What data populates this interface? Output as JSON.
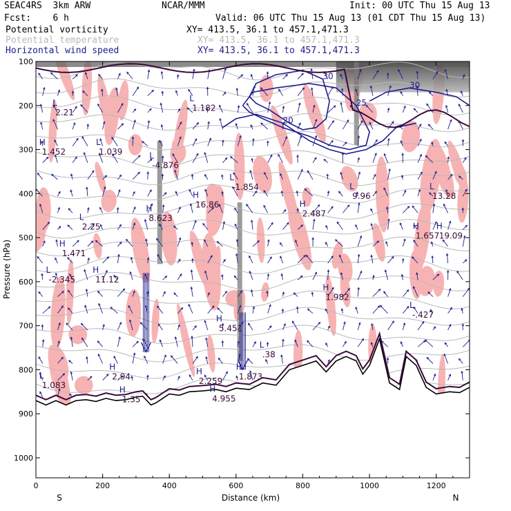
{
  "header": {
    "model": "SEAC4RS  3km ARW",
    "org": "NCAR/MMM",
    "init": "Init: 00 UTC Thu 15 Aug 13",
    "fcst": "Fcst:    6 h",
    "valid": "Valid: 06 UTC Thu 15 Aug 13 (01 CDT Thu 15 Aug 13)"
  },
  "legend": [
    {
      "name": "Potential vorticity",
      "xy": "XY= 413.5, 36.1 to 457.1,471.3",
      "color": "#000000"
    },
    {
      "name": "Potential temperature",
      "xy": "XY= 413.5, 36.1 to 457.1,471.3",
      "color": "#b8b8b8"
    },
    {
      "name": "Horizontal wind speed",
      "xy": "XY= 413.5, 36.1 to 457.1,471.3",
      "color": "#1c1c8c"
    }
  ],
  "chart_data": {
    "type": "cross-section",
    "xlabel": "Distance (km)",
    "ylabel": "Pressure (hPa)",
    "xlim": [
      0,
      1300
    ],
    "ylim": [
      1050,
      100
    ],
    "x_ticks": [
      0,
      200,
      400,
      600,
      800,
      1000,
      1200
    ],
    "y_ticks": [
      100,
      200,
      300,
      400,
      500,
      600,
      700,
      800,
      900,
      1000
    ],
    "x_end_labels": {
      "left": "S",
      "right": "N"
    },
    "terrain_surface": [
      [
        0,
        870
      ],
      [
        30,
        880
      ],
      [
        60,
        870
      ],
      [
        90,
        880
      ],
      [
        120,
        870
      ],
      [
        150,
        868
      ],
      [
        180,
        872
      ],
      [
        210,
        865
      ],
      [
        240,
        870
      ],
      [
        270,
        868
      ],
      [
        300,
        862
      ],
      [
        320,
        860
      ],
      [
        345,
        880
      ],
      [
        360,
        875
      ],
      [
        380,
        865
      ],
      [
        400,
        855
      ],
      [
        430,
        858
      ],
      [
        460,
        850
      ],
      [
        500,
        848
      ],
      [
        540,
        845
      ],
      [
        570,
        850
      ],
      [
        600,
        842
      ],
      [
        640,
        845
      ],
      [
        680,
        830
      ],
      [
        720,
        835
      ],
      [
        760,
        800
      ],
      [
        800,
        790
      ],
      [
        840,
        780
      ],
      [
        870,
        805
      ],
      [
        900,
        780
      ],
      [
        930,
        770
      ],
      [
        960,
        780
      ],
      [
        980,
        810
      ],
      [
        1000,
        790
      ],
      [
        1030,
        730
      ],
      [
        1060,
        830
      ],
      [
        1090,
        845
      ],
      [
        1110,
        770
      ],
      [
        1140,
        790
      ],
      [
        1170,
        840
      ],
      [
        1200,
        855
      ],
      [
        1240,
        850
      ],
      [
        1270,
        852
      ],
      [
        1300,
        840
      ]
    ],
    "wind_speed_contours": [
      {
        "label": "30",
        "points": [
          [
            640,
            180
          ],
          [
            660,
            150
          ],
          [
            720,
            130
          ],
          [
            800,
            120
          ],
          [
            860,
            140
          ],
          [
            880,
            190
          ],
          [
            870,
            230
          ],
          [
            840,
            250
          ],
          [
            800,
            255
          ],
          [
            760,
            240
          ],
          [
            700,
            210
          ],
          [
            660,
            195
          ],
          [
            640,
            180
          ]
        ]
      },
      {
        "label": "25",
        "points": [
          [
            620,
            200
          ],
          [
            650,
            170
          ],
          [
            720,
            160
          ],
          [
            820,
            150
          ],
          [
            900,
            160
          ],
          [
            960,
            200
          ],
          [
            1000,
            260
          ],
          [
            990,
            290
          ],
          [
            940,
            300
          ],
          [
            880,
            290
          ],
          [
            820,
            270
          ],
          [
            740,
            250
          ],
          [
            680,
            230
          ],
          [
            640,
            215
          ],
          [
            620,
            200
          ]
        ]
      },
      {
        "label": "20",
        "points": [
          [
            560,
            250
          ],
          [
            600,
            230
          ],
          [
            660,
            220
          ],
          [
            740,
            240
          ],
          [
            820,
            280
          ],
          [
            880,
            300
          ],
          [
            930,
            310
          ],
          [
            990,
            300
          ],
          [
            1040,
            280
          ],
          [
            1080,
            250
          ],
          [
            1140,
            240
          ]
        ]
      },
      {
        "label": "30",
        "points": [
          [
            1000,
            190
          ],
          [
            1050,
            170
          ],
          [
            1120,
            160
          ],
          [
            1200,
            170
          ],
          [
            1260,
            180
          ],
          [
            1300,
            200
          ]
        ]
      }
    ],
    "extrema_labels": [
      {
        "text": "H",
        "value": "1.452",
        "x": 10,
        "p": 290
      },
      {
        "text": "L",
        "value": "2.21",
        "x": 50,
        "p": 200
      },
      {
        "text": "L",
        "value": "1.039",
        "x": 180,
        "p": 290
      },
      {
        "text": "L",
        "value": "1.182",
        "x": 460,
        "p": 190
      },
      {
        "text": "L",
        "value": "-4.876",
        "x": 340,
        "p": 320
      },
      {
        "text": "H",
        "value": "8.623",
        "x": 330,
        "p": 440
      },
      {
        "text": "H",
        "value": "16.86",
        "x": 470,
        "p": 410
      },
      {
        "text": "L",
        "value": "-1.854",
        "x": 580,
        "p": 370
      },
      {
        "text": "L",
        "value": "2.25",
        "x": 130,
        "p": 460
      },
      {
        "text": "H",
        "value": "1.471",
        "x": 70,
        "p": 520
      },
      {
        "text": "L",
        "value": "-2.345",
        "x": 30,
        "p": 580
      },
      {
        "text": "H",
        "value": "11.12",
        "x": 170,
        "p": 580
      },
      {
        "text": "H",
        "value": "2.487",
        "x": 790,
        "p": 430
      },
      {
        "text": "L",
        "value": "9.96",
        "x": 940,
        "p": 390
      },
      {
        "text": "L",
        "value": "13.28",
        "x": 1180,
        "p": 390
      },
      {
        "text": "H",
        "value": "1.657",
        "x": 1130,
        "p": 480
      },
      {
        "text": "H",
        "value": "19.09",
        "x": 1200,
        "p": 480
      },
      {
        "text": "H",
        "value": "1.982",
        "x": 860,
        "p": 620
      },
      {
        "text": "L",
        "value": "-.427",
        "x": 1120,
        "p": 660
      },
      {
        "text": "H",
        "value": "5.451",
        "x": 540,
        "p": 690
      },
      {
        "text": "L",
        "value": ".38",
        "x": 670,
        "p": 750
      },
      {
        "text": "H",
        "value": "2.94",
        "x": 220,
        "p": 800
      },
      {
        "text": "H",
        "value": "2.259",
        "x": 480,
        "p": 810
      },
      {
        "text": "H",
        "value": "1.873",
        "x": 600,
        "p": 800
      },
      {
        "text": "L",
        "value": "1.083",
        "x": 10,
        "p": 820
      },
      {
        "text": "H",
        "value": "1.35",
        "x": 250,
        "p": 852
      },
      {
        "text": "H",
        "value": "4.955",
        "x": 520,
        "p": 850
      }
    ]
  }
}
